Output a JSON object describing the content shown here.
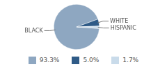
{
  "chart_data": {
    "type": "pie",
    "categories": [
      "BLACK",
      "WHITE",
      "HISPANIC"
    ],
    "values": [
      93.3,
      5.0,
      1.7
    ],
    "value_labels": [
      "93.3%",
      "5.0%",
      "1.7%"
    ],
    "colors": [
      "#8ea7c1",
      "#2f5b87",
      "#c9dbea"
    ],
    "legend": "bottom"
  }
}
